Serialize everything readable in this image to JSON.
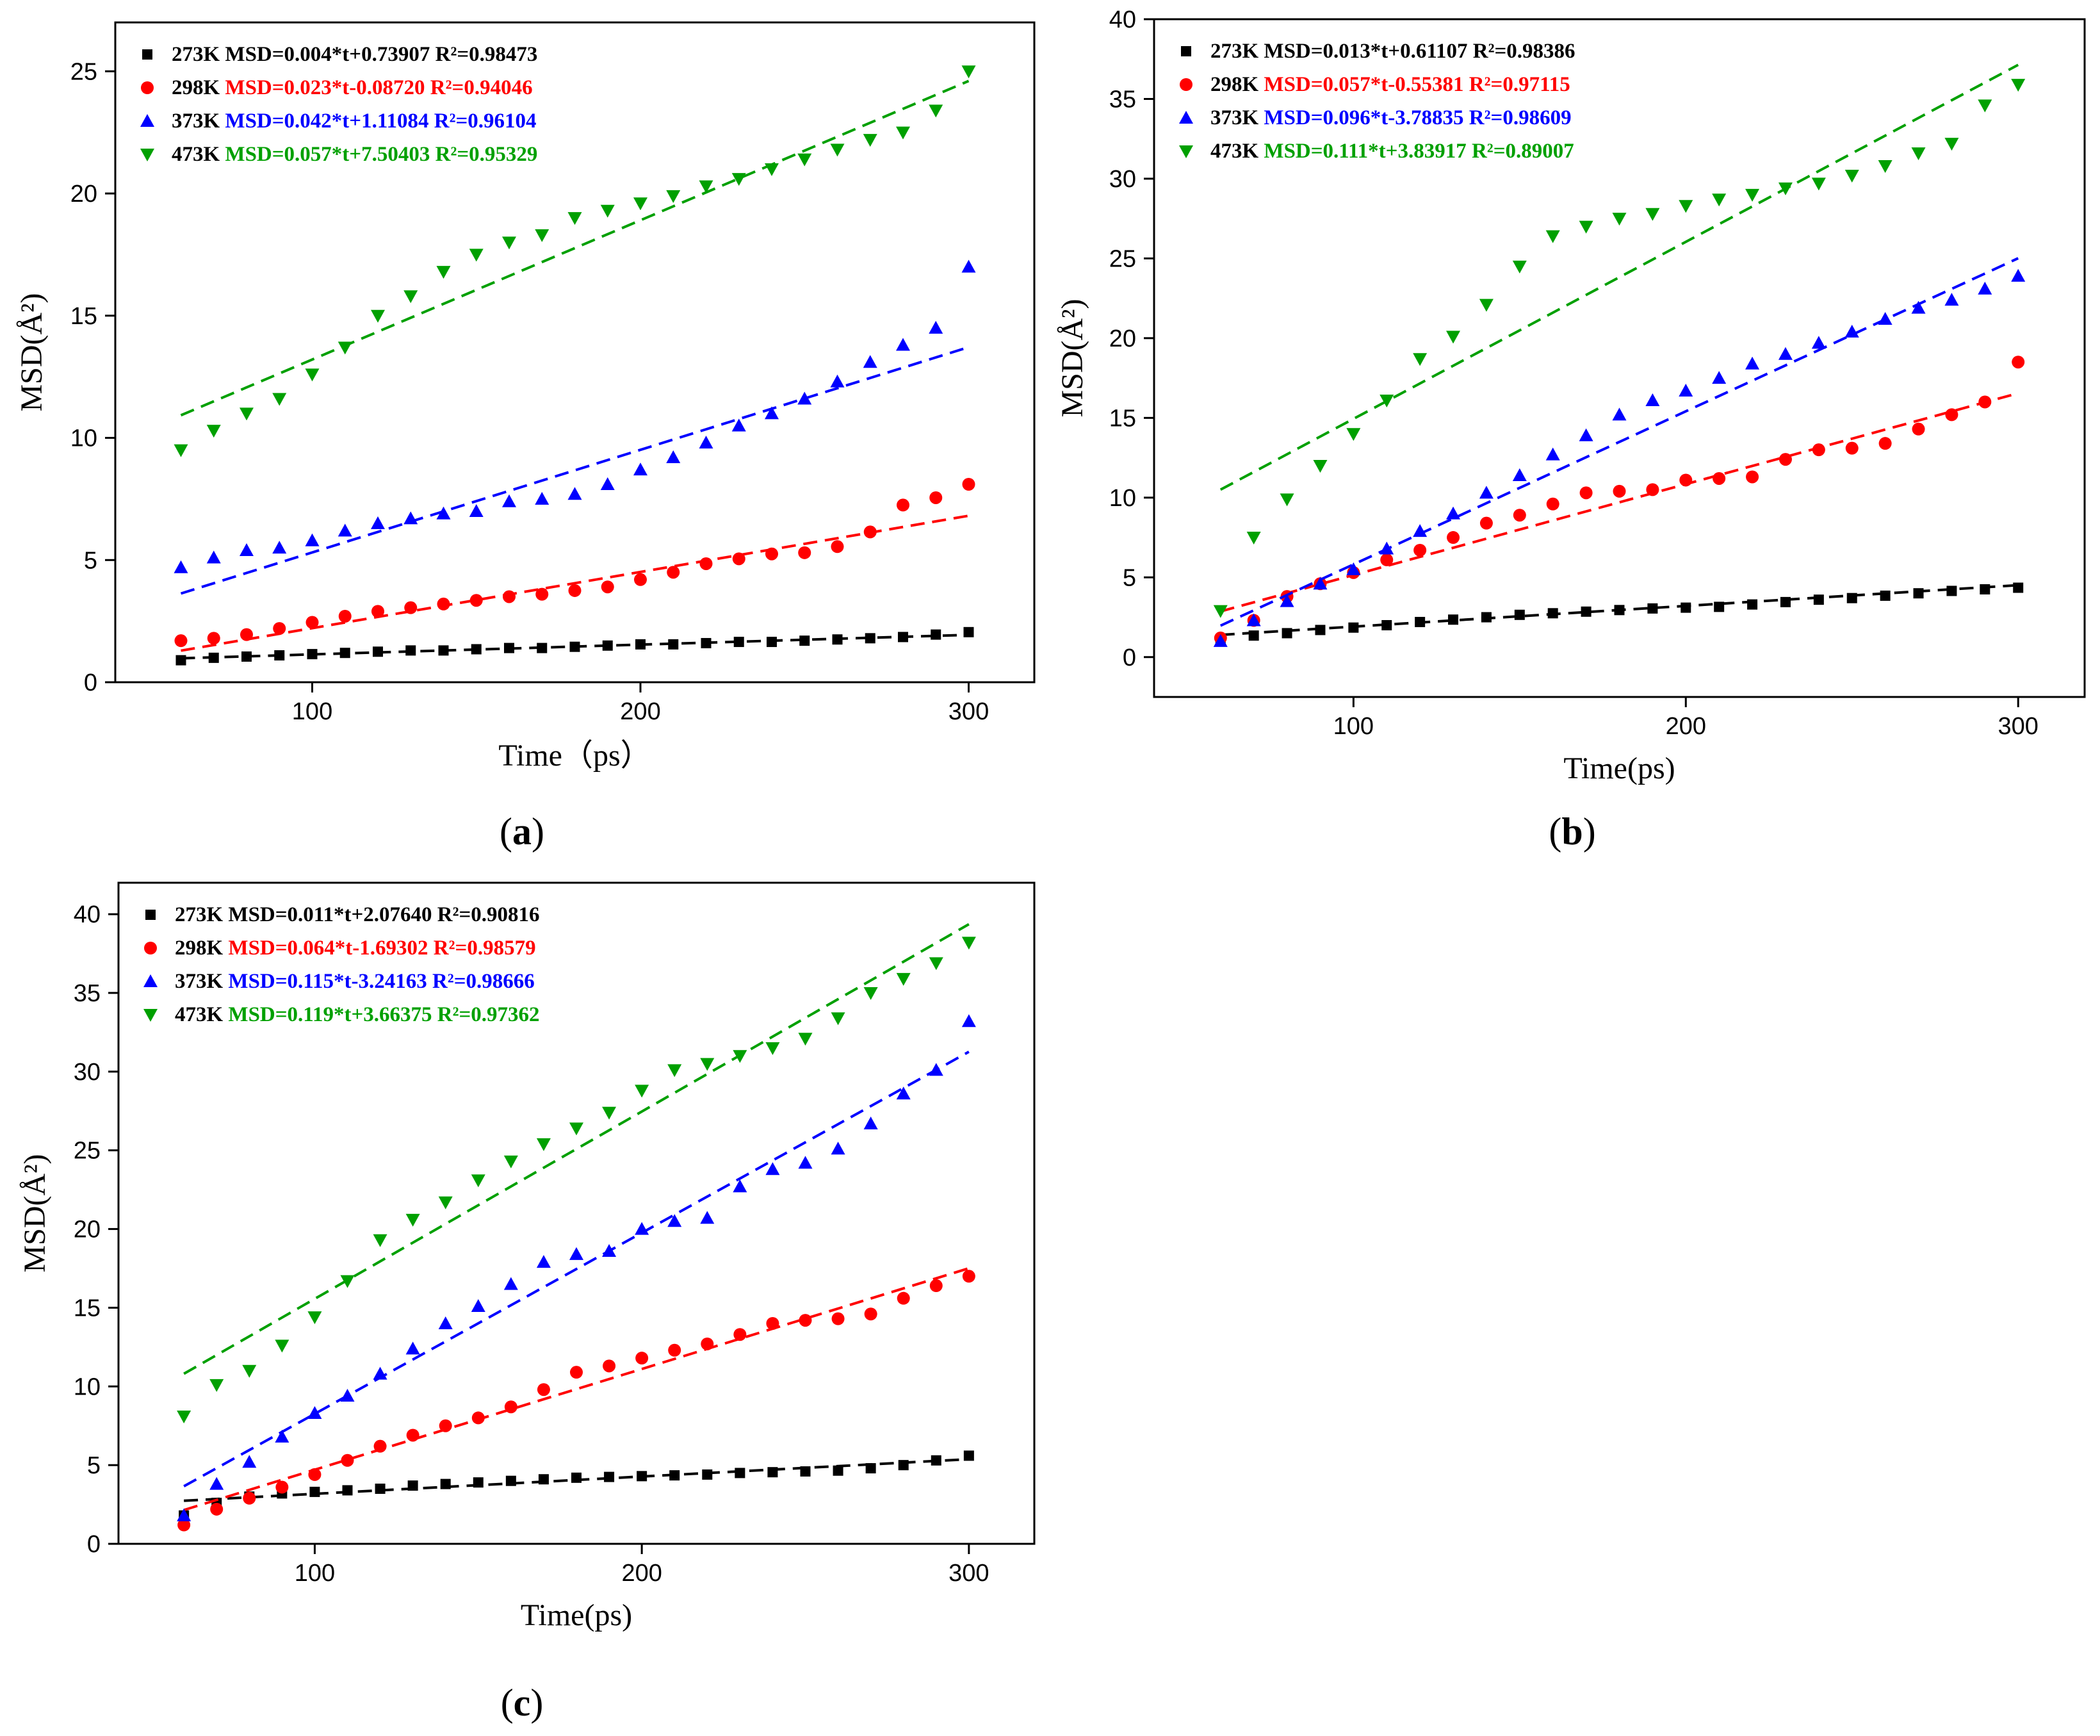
{
  "chart_data": [
    {
      "type": "scatter",
      "panel_label": "a",
      "xlabel": "Time（ps）",
      "ylabel": "MSD(Å²)",
      "xlim": [
        40,
        320
      ],
      "ylim": [
        0,
        27
      ],
      "xticks": [
        100,
        200,
        300
      ],
      "yticks": [
        0,
        5,
        10,
        15,
        20,
        25
      ],
      "x": [
        60,
        70,
        80,
        90,
        100,
        110,
        120,
        130,
        140,
        150,
        160,
        170,
        180,
        190,
        200,
        210,
        220,
        230,
        240,
        250,
        260,
        270,
        280,
        290,
        300
      ],
      "legend_position": "top-left",
      "series": [
        {
          "name": "273K",
          "equation": "MSD=0.004*t+0.73907",
          "r2": "R²=0.98473",
          "color": "#000000",
          "marker": "square",
          "values": [
            0.9,
            1.0,
            1.05,
            1.1,
            1.15,
            1.2,
            1.25,
            1.3,
            1.3,
            1.35,
            1.4,
            1.4,
            1.45,
            1.5,
            1.55,
            1.55,
            1.6,
            1.65,
            1.65,
            1.7,
            1.75,
            1.8,
            1.85,
            1.95,
            2.05
          ],
          "fit": {
            "slope": 0.004,
            "intercept": 0.73907
          }
        },
        {
          "name": "298K",
          "equation": "MSD=0.023*t-0.08720",
          "r2": "R²=0.94046",
          "color": "#ff0000",
          "marker": "circle",
          "values": [
            1.7,
            1.8,
            1.95,
            2.2,
            2.45,
            2.7,
            2.9,
            3.05,
            3.2,
            3.35,
            3.5,
            3.6,
            3.75,
            3.9,
            4.2,
            4.5,
            4.85,
            5.05,
            5.25,
            5.3,
            5.55,
            6.15,
            7.25,
            7.55,
            8.1
          ],
          "fit": {
            "slope": 0.023,
            "intercept": -0.0872
          }
        },
        {
          "name": "373K",
          "equation": "MSD=0.042*t+1.11084",
          "r2": "R²=0.96104",
          "color": "#0000ff",
          "marker": "triangle-up",
          "values": [
            4.7,
            5.1,
            5.4,
            5.5,
            5.8,
            6.2,
            6.5,
            6.7,
            6.9,
            7.0,
            7.4,
            7.5,
            7.7,
            8.1,
            8.7,
            9.2,
            9.8,
            10.5,
            11.0,
            11.6,
            12.3,
            13.1,
            13.8,
            14.5,
            17.0
          ],
          "fit": {
            "slope": 0.042,
            "intercept": 1.11084
          }
        },
        {
          "name": "473K",
          "equation": "MSD=0.057*t+7.50403",
          "r2": "R²=0.95329",
          "color": "#00a000",
          "marker": "triangle-down",
          "values": [
            9.5,
            10.3,
            11.0,
            11.6,
            12.6,
            13.7,
            15.0,
            15.8,
            16.8,
            17.5,
            18.0,
            18.3,
            19.0,
            19.3,
            19.6,
            19.9,
            20.3,
            20.6,
            21.0,
            21.4,
            21.8,
            22.2,
            22.5,
            23.4,
            25.0
          ],
          "fit": {
            "slope": 0.057,
            "intercept": 7.50403
          }
        }
      ]
    },
    {
      "type": "scatter",
      "panel_label": "b",
      "xlabel": "Time(ps)",
      "ylabel": "MSD(Å²)",
      "xlim": [
        40,
        320
      ],
      "ylim": [
        -2.5,
        40
      ],
      "xticks": [
        100,
        200,
        300
      ],
      "yticks": [
        0,
        5,
        10,
        15,
        20,
        25,
        30,
        35,
        40
      ],
      "x": [
        60,
        70,
        80,
        90,
        100,
        110,
        120,
        130,
        140,
        150,
        160,
        170,
        180,
        190,
        200,
        210,
        220,
        230,
        240,
        250,
        260,
        270,
        280,
        290,
        300
      ],
      "legend_position": "top-left",
      "series": [
        {
          "name": "273K",
          "equation": "MSD=0.013*t+0.61107",
          "r2": "R²=0.98386",
          "color": "#000000",
          "marker": "square",
          "values": [
            1.1,
            1.35,
            1.5,
            1.7,
            1.85,
            2.0,
            2.2,
            2.35,
            2.5,
            2.65,
            2.75,
            2.85,
            2.95,
            3.05,
            3.1,
            3.15,
            3.3,
            3.45,
            3.6,
            3.7,
            3.85,
            4.0,
            4.15,
            4.25,
            4.35
          ],
          "fit": {
            "slope": 0.013,
            "intercept": 0.61107
          }
        },
        {
          "name": "298K",
          "equation": "MSD=0.057*t-0.55381",
          "r2": "R²=0.97115",
          "color": "#ff0000",
          "marker": "circle",
          "values": [
            1.2,
            2.3,
            3.8,
            4.6,
            5.3,
            6.1,
            6.7,
            7.5,
            8.4,
            8.9,
            9.6,
            10.3,
            10.4,
            10.5,
            11.1,
            11.2,
            11.3,
            12.4,
            13.0,
            13.1,
            13.4,
            14.3,
            15.2,
            16.0,
            18.5
          ],
          "fit": {
            "slope": 0.057,
            "intercept": -0.55381
          }
        },
        {
          "name": "373K",
          "equation": "MSD=0.096*t-3.78835",
          "r2": "R²=0.98609",
          "color": "#0000ff",
          "marker": "triangle-up",
          "values": [
            1.0,
            2.3,
            3.5,
            4.6,
            5.5,
            6.8,
            7.9,
            9.0,
            10.3,
            11.4,
            12.7,
            13.9,
            15.2,
            16.1,
            16.7,
            17.5,
            18.4,
            19.0,
            19.7,
            20.4,
            21.2,
            21.9,
            22.4,
            23.1,
            23.9
          ],
          "fit": {
            "slope": 0.096,
            "intercept": -3.78835
          }
        },
        {
          "name": "473K",
          "equation": "MSD=0.111*t+3.83917",
          "r2": "R²=0.89007",
          "color": "#00a000",
          "marker": "triangle-down",
          "values": [
            2.9,
            7.5,
            9.9,
            12.0,
            14.0,
            16.1,
            18.7,
            20.1,
            22.1,
            24.5,
            26.4,
            27.0,
            27.5,
            27.8,
            28.3,
            28.7,
            29.0,
            29.4,
            29.7,
            30.2,
            30.8,
            31.6,
            32.2,
            34.6,
            35.9
          ],
          "fit": {
            "slope": 0.111,
            "intercept": 3.83917
          }
        }
      ]
    },
    {
      "type": "scatter",
      "panel_label": "c",
      "xlabel": "Time(ps)",
      "ylabel": "MSD(Å²)",
      "xlim": [
        40,
        320
      ],
      "ylim": [
        0,
        42
      ],
      "xticks": [
        100,
        200,
        300
      ],
      "yticks": [
        0,
        5,
        10,
        15,
        20,
        25,
        30,
        35,
        40
      ],
      "x": [
        60,
        70,
        80,
        90,
        100,
        110,
        120,
        130,
        140,
        150,
        160,
        170,
        180,
        190,
        200,
        210,
        220,
        230,
        240,
        250,
        260,
        270,
        280,
        290,
        300
      ],
      "legend_position": "top-left",
      "series": [
        {
          "name": "273K",
          "equation": "MSD=0.011*t+2.07640",
          "r2": "R²=0.90816",
          "color": "#000000",
          "marker": "square",
          "values": [
            1.8,
            2.6,
            3.0,
            3.2,
            3.3,
            3.4,
            3.5,
            3.7,
            3.8,
            3.9,
            4.0,
            4.1,
            4.2,
            4.25,
            4.3,
            4.35,
            4.4,
            4.5,
            4.55,
            4.6,
            4.65,
            4.8,
            5.0,
            5.3,
            5.6
          ],
          "fit": {
            "slope": 0.011,
            "intercept": 2.0764
          }
        },
        {
          "name": "298K",
          "equation": "MSD=0.064*t-1.69302",
          "r2": "R²=0.98579",
          "color": "#ff0000",
          "marker": "circle",
          "values": [
            1.2,
            2.2,
            2.9,
            3.6,
            4.4,
            5.3,
            6.2,
            6.9,
            7.5,
            8.0,
            8.7,
            9.8,
            10.9,
            11.3,
            11.8,
            12.3,
            12.7,
            13.3,
            14.0,
            14.2,
            14.3,
            14.6,
            15.6,
            16.4,
            17.0
          ],
          "fit": {
            "slope": 0.064,
            "intercept": -1.69302
          }
        },
        {
          "name": "373K",
          "equation": "MSD=0.115*t-3.24163",
          "r2": "R²=0.98666",
          "color": "#0000ff",
          "marker": "triangle-up",
          "values": [
            1.8,
            3.8,
            5.2,
            6.8,
            8.3,
            9.4,
            10.8,
            12.4,
            14.0,
            15.1,
            16.5,
            17.9,
            18.4,
            18.6,
            20.0,
            20.5,
            20.7,
            22.7,
            23.8,
            24.2,
            25.1,
            26.7,
            28.6,
            30.1,
            33.2
          ],
          "fit": {
            "slope": 0.115,
            "intercept": -3.24163
          }
        },
        {
          "name": "473K",
          "equation": "MSD=0.119*t+3.66375",
          "r2": "R²=0.97362",
          "color": "#00a000",
          "marker": "triangle-down",
          "values": [
            8.1,
            10.1,
            11.0,
            12.6,
            14.4,
            16.7,
            19.3,
            20.6,
            21.7,
            23.1,
            24.3,
            25.4,
            26.4,
            27.4,
            28.8,
            30.1,
            30.5,
            31.0,
            31.5,
            32.1,
            33.4,
            35.0,
            35.9,
            36.9,
            38.2
          ],
          "fit": {
            "slope": 0.119,
            "intercept": 3.66375
          }
        }
      ]
    }
  ]
}
